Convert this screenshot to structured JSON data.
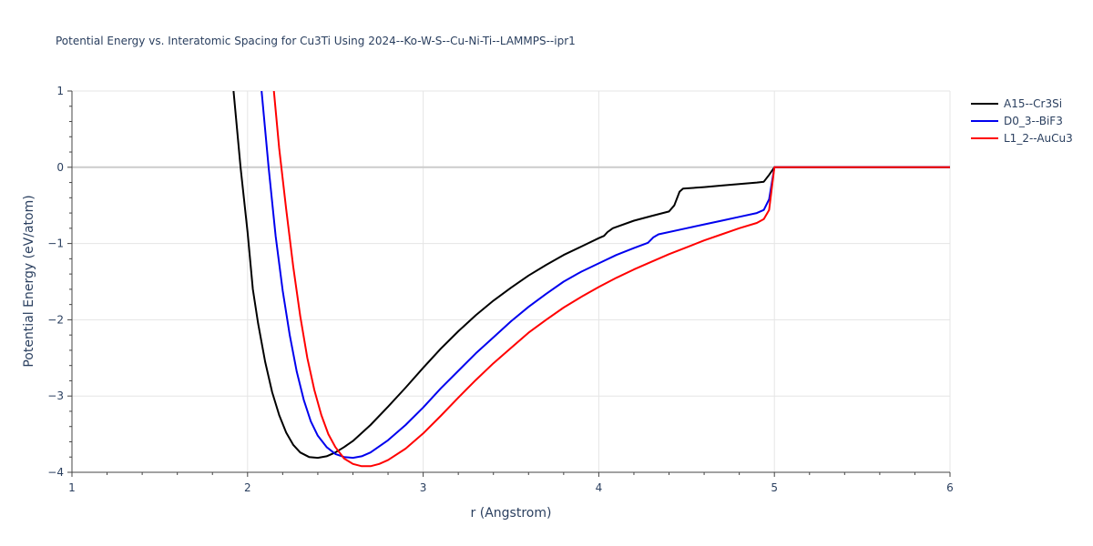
{
  "chart_data": {
    "type": "line",
    "title": "Potential Energy vs. Interatomic Spacing for Cu3Ti Using 2024--Ko-W-S--Cu-Ni-Ti--LAMMPS--ipr1",
    "xlabel": "r (Angstrom)",
    "ylabel": "Potential Energy (eV/atom)",
    "xlim": [
      1,
      6
    ],
    "ylim": [
      -4,
      1
    ],
    "x_ticks": [
      1,
      2,
      3,
      4,
      5,
      6
    ],
    "y_ticks": [
      1,
      0,
      -1,
      -2,
      -3,
      -4
    ],
    "x_tick_labels": [
      "1",
      "2",
      "3",
      "4",
      "5",
      "6"
    ],
    "y_tick_labels": [
      "1",
      "0",
      "−1",
      "−2",
      "−3",
      "−4"
    ],
    "grid": true,
    "legend_position": "top-right",
    "series": [
      {
        "name": "A15--Cr3Si",
        "color": "#000000",
        "x": [
          1.92,
          1.96,
          2.0,
          2.03,
          2.06,
          2.1,
          2.14,
          2.18,
          2.22,
          2.26,
          2.3,
          2.35,
          2.4,
          2.45,
          2.5,
          2.55,
          2.6,
          2.7,
          2.8,
          2.9,
          3.0,
          3.1,
          3.2,
          3.3,
          3.4,
          3.5,
          3.6,
          3.7,
          3.8,
          3.9,
          4.0,
          4.03,
          4.05,
          4.08,
          4.2,
          4.3,
          4.4,
          4.43,
          4.46,
          4.48,
          4.6,
          4.7,
          4.8,
          4.9,
          4.94,
          4.97,
          5.0,
          5.2,
          5.5,
          6.0
        ],
        "y": [
          1.0,
          0.0,
          -0.85,
          -1.6,
          -2.05,
          -2.55,
          -2.95,
          -3.25,
          -3.48,
          -3.64,
          -3.74,
          -3.8,
          -3.81,
          -3.79,
          -3.74,
          -3.67,
          -3.59,
          -3.38,
          -3.14,
          -2.89,
          -2.63,
          -2.38,
          -2.15,
          -1.94,
          -1.75,
          -1.58,
          -1.42,
          -1.28,
          -1.15,
          -1.04,
          -0.93,
          -0.9,
          -0.85,
          -0.8,
          -0.7,
          -0.64,
          -0.58,
          -0.5,
          -0.32,
          -0.28,
          -0.26,
          -0.24,
          -0.22,
          -0.2,
          -0.19,
          -0.1,
          0.0,
          0.0,
          0.0,
          0.0
        ]
      },
      {
        "name": "D0_3--BiF3",
        "color": "#0000ee",
        "x": [
          2.08,
          2.12,
          2.16,
          2.2,
          2.24,
          2.28,
          2.32,
          2.36,
          2.4,
          2.45,
          2.5,
          2.55,
          2.6,
          2.65,
          2.7,
          2.8,
          2.9,
          3.0,
          3.1,
          3.2,
          3.3,
          3.4,
          3.5,
          3.6,
          3.7,
          3.8,
          3.9,
          4.0,
          4.1,
          4.2,
          4.28,
          4.31,
          4.34,
          4.5,
          4.6,
          4.7,
          4.8,
          4.9,
          4.94,
          4.97,
          5.0,
          5.5,
          6.0
        ],
        "y": [
          1.0,
          0.0,
          -0.9,
          -1.62,
          -2.2,
          -2.68,
          -3.05,
          -3.33,
          -3.52,
          -3.67,
          -3.76,
          -3.8,
          -3.81,
          -3.79,
          -3.74,
          -3.58,
          -3.38,
          -3.15,
          -2.9,
          -2.67,
          -2.44,
          -2.23,
          -2.02,
          -1.83,
          -1.66,
          -1.5,
          -1.37,
          -1.26,
          -1.15,
          -1.06,
          -0.99,
          -0.92,
          -0.88,
          -0.8,
          -0.75,
          -0.7,
          -0.65,
          -0.6,
          -0.56,
          -0.42,
          0.0,
          0.0,
          0.0
        ]
      },
      {
        "name": "L1_2--AuCu3",
        "color": "#ff0000",
        "x": [
          2.15,
          2.18,
          2.22,
          2.26,
          2.3,
          2.34,
          2.38,
          2.42,
          2.46,
          2.5,
          2.55,
          2.6,
          2.65,
          2.7,
          2.75,
          2.8,
          2.9,
          3.0,
          3.1,
          3.2,
          3.3,
          3.4,
          3.5,
          3.6,
          3.7,
          3.8,
          3.9,
          4.0,
          4.1,
          4.2,
          4.3,
          4.4,
          4.5,
          4.6,
          4.7,
          4.8,
          4.9,
          4.94,
          4.97,
          5.0,
          5.5,
          6.0
        ],
        "y": [
          1.0,
          0.25,
          -0.55,
          -1.3,
          -1.95,
          -2.5,
          -2.92,
          -3.25,
          -3.5,
          -3.67,
          -3.82,
          -3.89,
          -3.92,
          -3.92,
          -3.89,
          -3.84,
          -3.69,
          -3.49,
          -3.26,
          -3.02,
          -2.79,
          -2.57,
          -2.37,
          -2.17,
          -2.0,
          -1.84,
          -1.7,
          -1.57,
          -1.45,
          -1.34,
          -1.24,
          -1.14,
          -1.05,
          -0.96,
          -0.88,
          -0.8,
          -0.73,
          -0.68,
          -0.56,
          0.0,
          0.0,
          0.0
        ]
      }
    ]
  }
}
